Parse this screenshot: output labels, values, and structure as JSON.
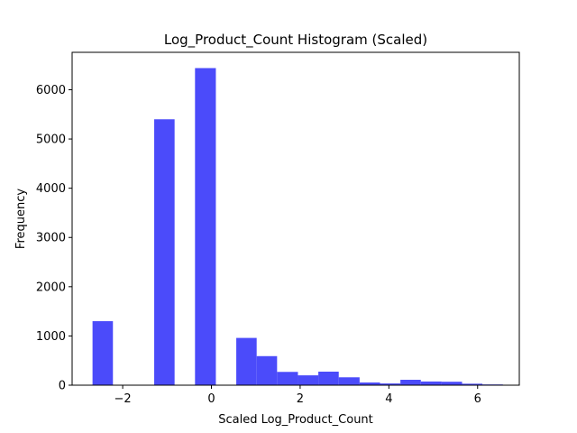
{
  "chart_data": {
    "type": "bar",
    "title": "Log_Product_Count Histogram (Scaled)",
    "xlabel": "Scaled Log_Product_Count",
    "ylabel": "Frequency",
    "xlim": [
      -3.14,
      6.94
    ],
    "ylim": [
      0,
      6760
    ],
    "xticks": [
      -2,
      0,
      2,
      4,
      6
    ],
    "yticks": [
      0,
      1000,
      2000,
      3000,
      4000,
      5000,
      6000
    ],
    "grid": false,
    "bar_color": "#4b4bfa",
    "bins": [
      {
        "x0": -2.68,
        "x1": -2.22,
        "count": 1300
      },
      {
        "x0": -2.22,
        "x1": -1.75,
        "count": 0
      },
      {
        "x0": -1.75,
        "x1": -1.29,
        "count": 0
      },
      {
        "x0": -1.29,
        "x1": -0.83,
        "count": 5400
      },
      {
        "x0": -0.83,
        "x1": -0.37,
        "count": 0
      },
      {
        "x0": -0.37,
        "x1": 0.1,
        "count": 6440
      },
      {
        "x0": 0.1,
        "x1": 0.56,
        "count": 0
      },
      {
        "x0": 0.56,
        "x1": 1.02,
        "count": 960
      },
      {
        "x0": 1.02,
        "x1": 1.48,
        "count": 590
      },
      {
        "x0": 1.48,
        "x1": 1.95,
        "count": 270
      },
      {
        "x0": 1.95,
        "x1": 2.41,
        "count": 200
      },
      {
        "x0": 2.41,
        "x1": 2.87,
        "count": 275
      },
      {
        "x0": 2.87,
        "x1": 3.34,
        "count": 160
      },
      {
        "x0": 3.34,
        "x1": 3.8,
        "count": 55
      },
      {
        "x0": 3.8,
        "x1": 4.26,
        "count": 35
      },
      {
        "x0": 4.26,
        "x1": 4.72,
        "count": 110
      },
      {
        "x0": 4.72,
        "x1": 5.19,
        "count": 75
      },
      {
        "x0": 5.19,
        "x1": 5.65,
        "count": 70
      },
      {
        "x0": 5.65,
        "x1": 6.11,
        "count": 30
      },
      {
        "x0": 6.11,
        "x1": 6.57,
        "count": 15
      }
    ]
  }
}
